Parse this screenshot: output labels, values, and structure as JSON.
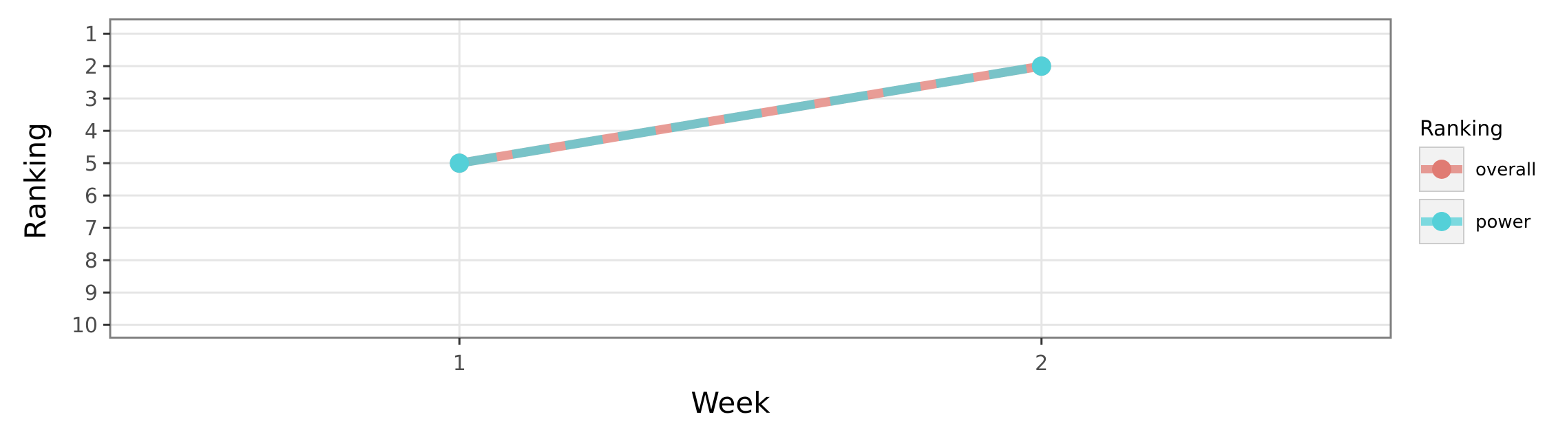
{
  "chart_data": {
    "type": "line",
    "xlabel": "Week",
    "ylabel": "Ranking",
    "x_ticks": [
      "1",
      "2"
    ],
    "y_ticks": [
      "1",
      "2",
      "3",
      "4",
      "5",
      "6",
      "7",
      "8",
      "9",
      "10"
    ],
    "xlim": [
      0.4,
      2.6
    ],
    "ylim": [
      10.4,
      0.55
    ],
    "y_reversed": true,
    "grid": true,
    "legend_position": "right",
    "legend_title": "Ranking",
    "series": [
      {
        "name": "overall",
        "x": [
          1,
          2
        ],
        "y": [
          5,
          2
        ],
        "color": "#e07b73",
        "line_style": "solid"
      },
      {
        "name": "power",
        "x": [
          1,
          2
        ],
        "y": [
          5,
          2
        ],
        "color": "#54d0d8",
        "line_style": "dashed"
      }
    ]
  }
}
